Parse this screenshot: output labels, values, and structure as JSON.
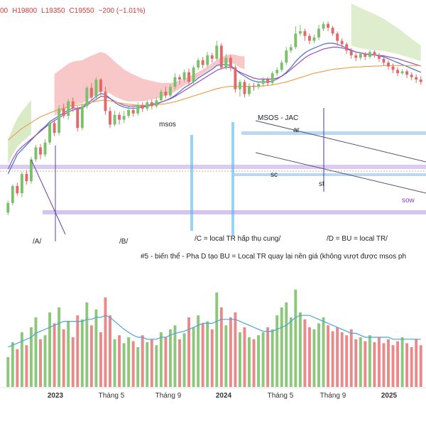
{
  "header": {
    "open_value": "00",
    "high": "H19800",
    "low": "L19350",
    "close": "C19550",
    "change": "−200 (−1.01%)"
  },
  "colors": {
    "up": "#7cbf6c",
    "down": "#e06a6a",
    "up_vol": "#8cc77c",
    "down_vol": "#e88a8a",
    "cloud_bear": "#f6b6b6",
    "cloud_bull": "#cfe5b8",
    "ema_fast": "#3f6fd1",
    "ema_mid": "#a04bb5",
    "ema_slow": "#f0a050",
    "vol_ma": "#4aa3df",
    "support_band": "#c9b6ea",
    "resist_band": "#a9cfee",
    "annotation": "#222222",
    "sow": "#8a3fc0"
  },
  "annotations": {
    "phase_a": "/A/",
    "phase_b": "/B/",
    "phase_c": "/C = local TR hấp thụ cung/",
    "phase_d": "/D = BU = local TR/",
    "note": "#5 - biến thể - Pha D tạo BU = Local TR quay lại nền giá (không vượt được msos ph",
    "msos": "msos",
    "msos_jac": "MSOS - JAC",
    "ar": "ar",
    "sc": "sc",
    "st": "st",
    "sow": "sow"
  },
  "xaxis": {
    "labels": [
      "2023",
      "Tháng 5",
      "Tháng 9",
      "2024",
      "Tháng 5",
      "Tháng 9",
      "2025"
    ],
    "bold": [
      true,
      false,
      false,
      true,
      false,
      false,
      true
    ]
  },
  "chart_data": {
    "type": "candlestick",
    "title": "",
    "last_bar": {
      "high": 19800,
      "low": 19350,
      "close": 19550,
      "change": -200,
      "change_pct": -1.01
    },
    "candles": [
      [
        30,
        50,
        25,
        55
      ],
      [
        50,
        85,
        45,
        88
      ],
      [
        85,
        70,
        65,
        92
      ],
      [
        70,
        110,
        62,
        115
      ],
      [
        110,
        95,
        88,
        118
      ],
      [
        95,
        140,
        90,
        145
      ],
      [
        140,
        165,
        135,
        170
      ],
      [
        165,
        150,
        140,
        172
      ],
      [
        150,
        175,
        145,
        182
      ],
      [
        175,
        215,
        170,
        220
      ],
      [
        215,
        195,
        188,
        222
      ],
      [
        195,
        245,
        190,
        252
      ],
      [
        245,
        230,
        225,
        255
      ],
      [
        230,
        260,
        222,
        265
      ],
      [
        260,
        245,
        238,
        268
      ],
      [
        245,
        205,
        198,
        250
      ],
      [
        205,
        250,
        200,
        255
      ],
      [
        250,
        288,
        245,
        292
      ],
      [
        288,
        268,
        262,
        298
      ],
      [
        268,
        305,
        262,
        310
      ],
      [
        305,
        280,
        272,
        308
      ],
      [
        280,
        240,
        232,
        290
      ],
      [
        240,
        212,
        205,
        248
      ],
      [
        212,
        232,
        208,
        240
      ],
      [
        232,
        222,
        212,
        238
      ],
      [
        222,
        230,
        215,
        240
      ],
      [
        230,
        242,
        225,
        250
      ],
      [
        242,
        235,
        228,
        248
      ],
      [
        235,
        252,
        230,
        258
      ],
      [
        252,
        245,
        238,
        258
      ],
      [
        245,
        258,
        240,
        262
      ],
      [
        258,
        250,
        244,
        264
      ],
      [
        250,
        262,
        246,
        268
      ],
      [
        262,
        280,
        258,
        285
      ],
      [
        280,
        272,
        266,
        290
      ],
      [
        272,
        290,
        268,
        296
      ],
      [
        290,
        310,
        285,
        318
      ],
      [
        310,
        305,
        295,
        315
      ],
      [
        305,
        320,
        300,
        325
      ],
      [
        320,
        300,
        292,
        328
      ],
      [
        300,
        330,
        296,
        335
      ],
      [
        330,
        345,
        325,
        350
      ],
      [
        345,
        335,
        328,
        352
      ],
      [
        335,
        355,
        330,
        362
      ],
      [
        355,
        348,
        340,
        360
      ],
      [
        348,
        375,
        345,
        385
      ],
      [
        375,
        330,
        325,
        380
      ],
      [
        330,
        350,
        325,
        358
      ],
      [
        350,
        330,
        322,
        355
      ],
      [
        330,
        285,
        278,
        335
      ],
      [
        285,
        300,
        270,
        305
      ],
      [
        300,
        275,
        268,
        305
      ],
      [
        275,
        292,
        270,
        298
      ],
      [
        292,
        290,
        282,
        298
      ],
      [
        290,
        296,
        285,
        300
      ],
      [
        296,
        305,
        290,
        310
      ],
      [
        305,
        298,
        292,
        310
      ],
      [
        298,
        318,
        294,
        322
      ],
      [
        318,
        325,
        312,
        330
      ],
      [
        325,
        340,
        320,
        345
      ],
      [
        340,
        365,
        335,
        372
      ],
      [
        365,
        372,
        360,
        378
      ],
      [
        372,
        400,
        368,
        415
      ],
      [
        400,
        405,
        395,
        418
      ],
      [
        405,
        395,
        385,
        410
      ],
      [
        395,
        385,
        378,
        400
      ],
      [
        385,
        392,
        380,
        398
      ],
      [
        392,
        410,
        386,
        418
      ],
      [
        410,
        420,
        405,
        425
      ],
      [
        420,
        412,
        405,
        425
      ],
      [
        412,
        400,
        395,
        416
      ],
      [
        400,
        385,
        375,
        404
      ],
      [
        385,
        378,
        370,
        390
      ],
      [
        378,
        365,
        358,
        382
      ],
      [
        365,
        355,
        348,
        370
      ],
      [
        355,
        350,
        343,
        360
      ],
      [
        350,
        358,
        345,
        362
      ],
      [
        358,
        352,
        345,
        362
      ],
      [
        352,
        362,
        348,
        366
      ],
      [
        362,
        355,
        350,
        366
      ],
      [
        355,
        348,
        342,
        360
      ],
      [
        348,
        340,
        334,
        352
      ],
      [
        340,
        332,
        325,
        345
      ],
      [
        332,
        325,
        318,
        338
      ],
      [
        325,
        318,
        312,
        330
      ],
      [
        318,
        322,
        315,
        326
      ],
      [
        322,
        315,
        308,
        326
      ],
      [
        315,
        310,
        304,
        320
      ],
      [
        310,
        305,
        298,
        316
      ],
      [
        305,
        300,
        294,
        312
      ]
    ],
    "volume": [
      30,
      45,
      38,
      55,
      42,
      60,
      70,
      48,
      52,
      75,
      64,
      80,
      58,
      66,
      50,
      72,
      68,
      85,
      62,
      78,
      55,
      90,
      72,
      48,
      52,
      44,
      50,
      46,
      40,
      52,
      45,
      48,
      42,
      55,
      50,
      58,
      62,
      48,
      54,
      70,
      60,
      72,
      64,
      66,
      58,
      95,
      80,
      62,
      70,
      75,
      55,
      60,
      50,
      48,
      52,
      55,
      60,
      58,
      72,
      80,
      85,
      70,
      98,
      75,
      68,
      60,
      58,
      64,
      70,
      62,
      56,
      60,
      55,
      52,
      58,
      48,
      50,
      46,
      52,
      45,
      50,
      44,
      48,
      42,
      46,
      50,
      44,
      40,
      48,
      42
    ],
    "series": [
      {
        "key": "ema_fast",
        "values": [
          110,
          130,
          150,
          160,
          170,
          180,
          190,
          200,
          208,
          218,
          224,
          230,
          236,
          242,
          246,
          246,
          248,
          256,
          262,
          270,
          276,
          274,
          266,
          258,
          252,
          248,
          246,
          246,
          246,
          248,
          250,
          252,
          254,
          258,
          262,
          266,
          272,
          280,
          288,
          294,
          300,
          308,
          314,
          320,
          326,
          334,
          336,
          336,
          334,
          326,
          318,
          312,
          306,
          302,
          300,
          300,
          300,
          302,
          306,
          312,
          320,
          330,
          342,
          352,
          360,
          366,
          370,
          374,
          378,
          380,
          380,
          378,
          374,
          370,
          366,
          362,
          360,
          358,
          356,
          356,
          354,
          352,
          348,
          344,
          340,
          336,
          332,
          328,
          324,
          320
        ]
      },
      {
        "key": "ema_mid",
        "values": [
          120,
          140,
          156,
          166,
          174,
          182,
          190,
          198,
          206,
          214,
          220,
          226,
          232,
          238,
          242,
          244,
          246,
          252,
          258,
          264,
          270,
          270,
          266,
          260,
          256,
          252,
          250,
          250,
          250,
          250,
          252,
          254,
          256,
          258,
          262,
          265,
          270,
          276,
          282,
          288,
          294,
          300,
          306,
          312,
          318,
          324,
          328,
          330,
          330,
          326,
          320,
          316,
          312,
          308,
          306,
          306,
          306,
          306,
          308,
          312,
          318,
          326,
          334,
          342,
          350,
          356,
          360,
          364,
          368,
          370,
          372,
          372,
          370,
          368,
          365,
          362,
          360,
          358,
          357,
          356,
          355,
          354,
          352,
          350,
          348,
          345,
          342,
          339,
          336,
          333
        ]
      },
      {
        "key": "ema_slow",
        "values": [
          180,
          188,
          196,
          204,
          210,
          216,
          222,
          228,
          232,
          236,
          240,
          243,
          246,
          249,
          251,
          252,
          253,
          256,
          258,
          260,
          262,
          262,
          261,
          259,
          257,
          255,
          254,
          253,
          252,
          252,
          252,
          252,
          253,
          254,
          255,
          257,
          259,
          262,
          265,
          268,
          271,
          274,
          277,
          280,
          283,
          286,
          288,
          290,
          291,
          291,
          291,
          291,
          291,
          291,
          291,
          292,
          293,
          294,
          296,
          298,
          300,
          303,
          306,
          309,
          312,
          315,
          318,
          320,
          322,
          324,
          326,
          327,
          328,
          329,
          330,
          331,
          331,
          332,
          332,
          333,
          333,
          334,
          334,
          334,
          334,
          334,
          334,
          334,
          334,
          334
        ]
      },
      {
        "key": "vol_ma",
        "values": [
          40,
          42,
          44,
          46,
          48,
          50,
          54,
          56,
          58,
          60,
          62,
          64,
          66,
          66,
          66,
          66,
          66,
          68,
          68,
          70,
          70,
          72,
          70,
          66,
          62,
          58,
          55,
          52,
          50,
          50,
          48,
          48,
          48,
          50,
          50,
          52,
          54,
          55,
          56,
          58,
          60,
          62,
          64,
          64,
          64,
          66,
          68,
          68,
          68,
          68,
          66,
          64,
          62,
          60,
          58,
          56,
          56,
          56,
          58,
          60,
          62,
          66,
          70,
          72,
          72,
          72,
          70,
          68,
          66,
          64,
          62,
          60,
          58,
          56,
          54,
          54,
          52,
          50,
          50,
          50,
          50,
          50,
          50,
          48,
          48,
          48,
          48,
          48,
          48,
          48
        ]
      }
    ]
  }
}
